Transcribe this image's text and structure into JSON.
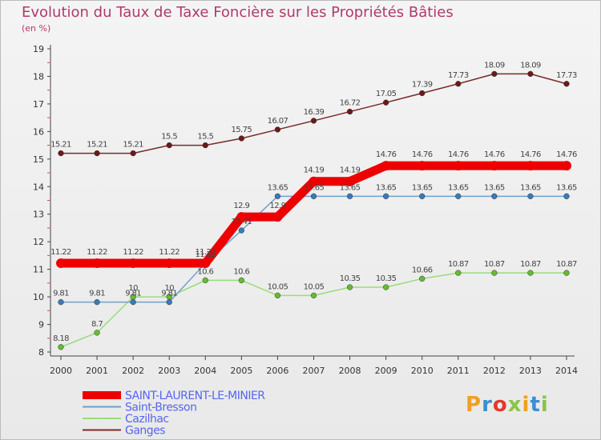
{
  "header": {
    "title": "Evolution du Taux de Taxe Foncière sur les Propriétés Bâties",
    "unit": "(en %)"
  },
  "logo": {
    "text": "Proxiti",
    "colors": [
      "#f0a020",
      "#3a8fd0",
      "#e03a2a",
      "#8bc34a",
      "#f0a020",
      "#3a8fd0",
      "#8bc34a"
    ]
  },
  "chart_data": {
    "type": "line",
    "x": [
      "2000",
      "2001",
      "2002",
      "2003",
      "2004",
      "2005",
      "2006",
      "2007",
      "2008",
      "2009",
      "2010",
      "2011",
      "2012",
      "2013",
      "2014"
    ],
    "ylim": [
      8,
      19
    ],
    "yticks": [
      "8",
      "9",
      "10",
      "11",
      "12",
      "13",
      "14",
      "15",
      "16",
      "17",
      "18",
      "19"
    ],
    "grid": false,
    "legend": "bottom-left",
    "series": [
      {
        "name": "Ganges",
        "color": "#7a2a2a",
        "dot": "#6a1a1a",
        "values": [
          15.21,
          15.21,
          15.21,
          15.5,
          15.5,
          15.75,
          16.07,
          16.39,
          16.72,
          17.05,
          17.39,
          17.73,
          18.09,
          18.09,
          17.73
        ],
        "labels": [
          "15.21",
          "15.21",
          "15.21",
          "15.5",
          "15.5",
          "15.75",
          "16.07",
          "16.39",
          "16.72",
          "17.05",
          "17.39",
          "17.73",
          "18.09",
          "18.09",
          "17.73"
        ]
      },
      {
        "name": "Cazilhac",
        "color": "#99dd77",
        "dot": "#66bb33",
        "values": [
          8.18,
          8.7,
          10.0,
          10.0,
          10.6,
          10.6,
          10.05,
          10.05,
          10.35,
          10.35,
          10.66,
          10.87,
          10.87,
          10.87,
          10.87
        ],
        "labels": [
          "8.18",
          "8.7",
          "10",
          "10",
          "10.6",
          "10.6",
          "10.05",
          "10.05",
          "10.35",
          "10.35",
          "10.66",
          "10.87",
          "10.87",
          "10.87",
          "10.87"
        ]
      },
      {
        "name": "Saint-Bresson",
        "color": "#6fa0cc",
        "dot": "#3a7ab8",
        "values": [
          9.81,
          9.81,
          9.81,
          9.81,
          11.22,
          12.41,
          13.65,
          13.65,
          13.65,
          13.65,
          13.65,
          13.65,
          13.65,
          13.65,
          13.65
        ],
        "labels": [
          "9.81",
          "9.81",
          "9.81",
          "9.81",
          "11.22",
          "12.41",
          "13.65",
          "13.65",
          "13.65",
          "13.65",
          "13.65",
          "13.65",
          "13.65",
          "13.65",
          "13.65"
        ]
      },
      {
        "name": "SAINT-LAURENT-LE-MINIER",
        "color": "#ee0000",
        "dot": "#ee0000",
        "thick": true,
        "values": [
          11.22,
          11.22,
          11.22,
          11.22,
          11.22,
          12.9,
          12.9,
          14.19,
          14.19,
          14.76,
          14.76,
          14.76,
          14.76,
          14.76,
          14.76
        ],
        "labels": [
          "11.22",
          "11.22",
          "11.22",
          "11.22",
          "11.22",
          "12.9",
          "12.9",
          "14.19",
          "14.19",
          "14.76",
          "14.76",
          "14.76",
          "14.76",
          "14.76",
          "14.76"
        ]
      }
    ]
  }
}
